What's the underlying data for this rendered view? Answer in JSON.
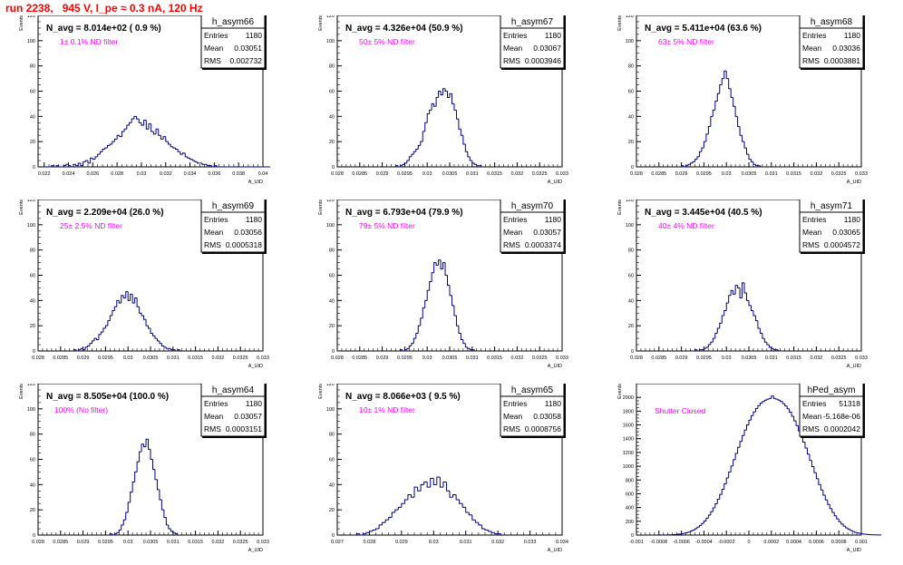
{
  "page_title": "run 2238,   945 V, I_pe ≈ 0.3 nA, 120 Hz",
  "style": {
    "hist_color": "#000080",
    "annotation_color": "#ff00ff",
    "title_color": "#ff0000"
  },
  "chart_data": [
    {
      "type": "histogram",
      "hist_name": "h_asym66",
      "navg": "N_avg = 8.014e+02 ( 0.9 %)",
      "annotation": "1± 0.1% ND filter",
      "stats": {
        "entries": "1180",
        "mean": "0.03051",
        "rms": "0.002732"
      },
      "ylabel": "Events",
      "xlabel": "A_UID",
      "xlim": [
        0.0215,
        0.04
      ],
      "ylim": [
        0,
        120
      ],
      "xticks": [
        0.022,
        0.024,
        0.026,
        0.028,
        0.03,
        0.032,
        0.034,
        0.036,
        0.038,
        0.04
      ],
      "xtick_labels": [
        "0.022",
        "0.024",
        "0.026",
        "0.028",
        "0.03",
        "0.032",
        "0.034",
        "0.036",
        "0.038",
        "0.04"
      ],
      "yticks": [
        0,
        20,
        40,
        60,
        80,
        100,
        120
      ],
      "ytick_labels": [
        "0",
        "20",
        "40",
        "60",
        "80",
        "100",
        "120"
      ],
      "bins": {
        "start": 0.022,
        "width": 0.0002,
        "counts": [
          0,
          0,
          0,
          1,
          0,
          1,
          0,
          0,
          1,
          2,
          1,
          0,
          2,
          1,
          3,
          1,
          4,
          5,
          3,
          7,
          6,
          8,
          10,
          12,
          14,
          15,
          17,
          18,
          20,
          22,
          25,
          24,
          28,
          30,
          33,
          35,
          38,
          40,
          38,
          35,
          33,
          37,
          30,
          34,
          28,
          26,
          30,
          25,
          22,
          24,
          20,
          18,
          16,
          15,
          14,
          12,
          10,
          11,
          8,
          7,
          6,
          5,
          4,
          3,
          3,
          2,
          2,
          1,
          1,
          0,
          1,
          0,
          0,
          0,
          0,
          0,
          0,
          0,
          0,
          0,
          0,
          0,
          0,
          0,
          0,
          0,
          0,
          0,
          0,
          0,
          0,
          0,
          0
        ]
      }
    },
    {
      "type": "histogram",
      "hist_name": "h_asym67",
      "navg": "N_avg = 4.326e+04 (50.9 %)",
      "annotation": "50± 5% ND filter",
      "stats": {
        "entries": "1180",
        "mean": "0.03067",
        "rms": "0.0003946"
      },
      "ylabel": "Events",
      "xlabel": "A_UID",
      "xlim": [
        0.028,
        0.033
      ],
      "ylim": [
        0,
        120
      ],
      "xticks": [
        0.028,
        0.0285,
        0.029,
        0.0295,
        0.03,
        0.0305,
        0.031,
        0.0315,
        0.032,
        0.0325,
        0.033
      ],
      "xtick_labels": [
        "0.028",
        "0.0285",
        "0.029",
        "0.0295",
        "0.03",
        "0.0305",
        "0.031",
        "0.0315",
        "0.032",
        "0.0325",
        "0.033"
      ],
      "yticks": [
        0,
        20,
        40,
        60,
        80,
        100,
        120
      ],
      "ytick_labels": [
        "0",
        "20",
        "40",
        "60",
        "80",
        "100",
        "120"
      ],
      "bins": {
        "start": 0.0293,
        "width": 5e-05,
        "counts": [
          1,
          0,
          1,
          2,
          3,
          5,
          8,
          10,
          12,
          14,
          17,
          20,
          28,
          35,
          42,
          45,
          50,
          48,
          55,
          60,
          57,
          62,
          60,
          55,
          58,
          50,
          45,
          38,
          30,
          25,
          18,
          12,
          8,
          5,
          3,
          2,
          1,
          1
        ]
      }
    },
    {
      "type": "histogram",
      "hist_name": "h_asym68",
      "navg": "N_avg = 5.411e+04 (63.6 %)",
      "annotation": "63± 5% ND filter",
      "stats": {
        "entries": "1180",
        "mean": "0.03036",
        "rms": "0.0003881"
      },
      "ylabel": "Events",
      "xlabel": "A_UID",
      "xlim": [
        0.028,
        0.033
      ],
      "ylim": [
        0,
        120
      ],
      "xticks": [
        0.028,
        0.0285,
        0.029,
        0.0295,
        0.03,
        0.0305,
        0.031,
        0.0315,
        0.032,
        0.0325,
        0.033
      ],
      "xtick_labels": [
        "0.028",
        "0.0285",
        "0.029",
        "0.0295",
        "0.03",
        "0.0305",
        "0.031",
        "0.0315",
        "0.032",
        "0.0325",
        "0.033"
      ],
      "yticks": [
        0,
        20,
        40,
        60,
        80,
        100,
        120
      ],
      "ytick_labels": [
        "0",
        "20",
        "40",
        "60",
        "80",
        "100",
        "120"
      ],
      "bins": {
        "start": 0.029,
        "width": 5e-05,
        "counts": [
          1,
          0,
          1,
          2,
          3,
          4,
          6,
          8,
          12,
          15,
          20,
          26,
          32,
          40,
          45,
          52,
          58,
          65,
          70,
          76,
          70,
          62,
          55,
          48,
          40,
          32,
          25,
          20,
          15,
          10,
          6,
          4,
          2,
          1,
          1
        ]
      }
    },
    {
      "type": "histogram",
      "hist_name": "h_asym69",
      "navg": "N_avg = 2.209e+04 (26.0 %)",
      "annotation": "25± 2.5% ND filter",
      "stats": {
        "entries": "1180",
        "mean": "0.03056",
        "rms": "0.0005318"
      },
      "ylabel": "Events",
      "xlabel": "A_UID",
      "xlim": [
        0.028,
        0.033
      ],
      "ylim": [
        0,
        120
      ],
      "xticks": [
        0.028,
        0.0285,
        0.029,
        0.0295,
        0.03,
        0.0305,
        0.031,
        0.0315,
        0.032,
        0.0325,
        0.033
      ],
      "xtick_labels": [
        "0.028",
        "0.0285",
        "0.029",
        "0.0295",
        "0.03",
        "0.0305",
        "0.031",
        "0.0315",
        "0.032",
        "0.0325",
        "0.033"
      ],
      "yticks": [
        0,
        20,
        40,
        60,
        80,
        100,
        120
      ],
      "ytick_labels": [
        "0",
        "20",
        "40",
        "60",
        "80",
        "100",
        "120"
      ],
      "bins": {
        "start": 0.0288,
        "width": 5e-05,
        "counts": [
          1,
          0,
          1,
          2,
          1,
          3,
          4,
          6,
          8,
          10,
          9,
          13,
          15,
          18,
          20,
          24,
          28,
          32,
          35,
          40,
          38,
          44,
          42,
          47,
          40,
          45,
          38,
          42,
          35,
          30,
          28,
          25,
          20,
          18,
          14,
          12,
          10,
          8,
          6,
          4,
          3,
          2,
          2,
          1,
          1,
          0,
          1
        ]
      }
    },
    {
      "type": "histogram",
      "hist_name": "h_asym70",
      "navg": "N_avg = 6.793e+04 (79.9 %)",
      "annotation": "79± 5% ND filter",
      "stats": {
        "entries": "1180",
        "mean": "0.03057",
        "rms": "0.0003374"
      },
      "ylabel": "Events",
      "xlabel": "A_UID",
      "xlim": [
        0.028,
        0.033
      ],
      "ylim": [
        0,
        120
      ],
      "xticks": [
        0.028,
        0.0285,
        0.029,
        0.0295,
        0.03,
        0.0305,
        0.031,
        0.0315,
        0.032,
        0.0325,
        0.033
      ],
      "xtick_labels": [
        "0.028",
        "0.0285",
        "0.029",
        "0.0295",
        "0.03",
        "0.0305",
        "0.031",
        "0.0315",
        "0.032",
        "0.0325",
        "0.033"
      ],
      "yticks": [
        0,
        20,
        40,
        60,
        80,
        100,
        120
      ],
      "ytick_labels": [
        "0",
        "20",
        "40",
        "60",
        "80",
        "100",
        "120"
      ],
      "bins": {
        "start": 0.0294,
        "width": 5e-05,
        "counts": [
          1,
          0,
          1,
          2,
          4,
          6,
          10,
          14,
          20,
          26,
          34,
          40,
          48,
          55,
          62,
          70,
          68,
          72,
          65,
          70,
          60,
          52,
          44,
          36,
          28,
          20,
          14,
          9,
          6,
          3,
          2,
          1,
          1
        ]
      }
    },
    {
      "type": "histogram",
      "hist_name": "h_asym71",
      "navg": "N_avg = 3.445e+04 (40.5 %)",
      "annotation": "40± 4% ND filter",
      "stats": {
        "entries": "1180",
        "mean": "0.03065",
        "rms": "0.0004572"
      },
      "ylabel": "Events",
      "xlabel": "A_UID",
      "xlim": [
        0.028,
        0.033
      ],
      "ylim": [
        0,
        120
      ],
      "xticks": [
        0.028,
        0.0285,
        0.029,
        0.0295,
        0.03,
        0.0305,
        0.031,
        0.0315,
        0.032,
        0.0325,
        0.033
      ],
      "xtick_labels": [
        "0.028",
        "0.0285",
        "0.029",
        "0.0295",
        "0.03",
        "0.0305",
        "0.031",
        "0.0315",
        "0.032",
        "0.0325",
        "0.033"
      ],
      "yticks": [
        0,
        20,
        40,
        60,
        80,
        100,
        120
      ],
      "ytick_labels": [
        "0",
        "20",
        "40",
        "60",
        "80",
        "100",
        "120"
      ],
      "bins": {
        "start": 0.0293,
        "width": 5e-05,
        "counts": [
          1,
          0,
          1,
          1,
          2,
          3,
          5,
          7,
          10,
          14,
          18,
          22,
          28,
          32,
          38,
          44,
          48,
          45,
          52,
          50,
          42,
          54,
          46,
          40,
          36,
          32,
          28,
          24,
          18,
          14,
          10,
          7,
          5,
          3,
          2,
          1,
          1
        ]
      }
    },
    {
      "type": "histogram",
      "hist_name": "h_asym64",
      "navg": "N_avg = 8.505e+04 (100.0 %)",
      "annotation": "100% (No filter)",
      "stats": {
        "entries": "1180",
        "mean": "0.03057",
        "rms": "0.0003151"
      },
      "ylabel": "Events",
      "xlabel": "A_UID",
      "xlim": [
        0.028,
        0.033
      ],
      "ylim": [
        0,
        120
      ],
      "xticks": [
        0.028,
        0.0285,
        0.029,
        0.0295,
        0.03,
        0.0305,
        0.031,
        0.0315,
        0.032,
        0.0325,
        0.033
      ],
      "xtick_labels": [
        "0.028",
        "0.0285",
        "0.029",
        "0.0295",
        "0.03",
        "0.0305",
        "0.031",
        "0.0315",
        "0.032",
        "0.0325",
        "0.033"
      ],
      "yticks": [
        0,
        20,
        40,
        60,
        80,
        100,
        120
      ],
      "ytick_labels": [
        "0",
        "20",
        "40",
        "60",
        "80",
        "100",
        "120"
      ],
      "bins": {
        "start": 0.0296,
        "width": 5e-05,
        "counts": [
          1,
          0,
          1,
          2,
          4,
          8,
          12,
          18,
          26,
          34,
          42,
          50,
          58,
          66,
          72,
          70,
          76,
          68,
          60,
          52,
          44,
          36,
          28,
          20,
          14,
          8,
          5,
          3,
          2,
          1
        ]
      }
    },
    {
      "type": "histogram",
      "hist_name": "h_asym65",
      "navg": "N_avg = 8.066e+03 ( 9.5 %)",
      "annotation": "10± 1% ND filter",
      "stats": {
        "entries": "1180",
        "mean": "0.03058",
        "rms": "0.0008756"
      },
      "ylabel": "Events",
      "xlabel": "A_UID",
      "xlim": [
        0.027,
        0.034
      ],
      "ylim": [
        0,
        120
      ],
      "xticks": [
        0.027,
        0.028,
        0.029,
        0.03,
        0.031,
        0.032,
        0.033,
        0.034
      ],
      "xtick_labels": [
        "0.027",
        "0.028",
        "0.029",
        "0.03",
        "0.031",
        "0.032",
        "0.033",
        "0.034"
      ],
      "yticks": [
        0,
        20,
        40,
        60,
        80,
        100,
        120
      ],
      "ytick_labels": [
        "0",
        "20",
        "40",
        "60",
        "80",
        "100",
        "120"
      ],
      "bins": {
        "start": 0.0276,
        "width": 0.0001,
        "counts": [
          1,
          0,
          1,
          2,
          3,
          4,
          5,
          8,
          10,
          12,
          14,
          18,
          20,
          22,
          25,
          28,
          32,
          30,
          38,
          35,
          40,
          42,
          38,
          45,
          40,
          46,
          38,
          42,
          35,
          30,
          32,
          28,
          25,
          22,
          18,
          16,
          12,
          10,
          8,
          5,
          4,
          3,
          2,
          1,
          1
        ]
      }
    },
    {
      "type": "histogram",
      "hist_name": "hPed_asym",
      "navg": "",
      "annotation": "Shutter Closed",
      "stats": {
        "entries": "51318",
        "mean": "-5.168e-06",
        "rms": "0.0002042"
      },
      "ylabel": "Events",
      "xlabel": "A_UID",
      "xlim": [
        -0.001,
        0.001
      ],
      "ylim": [
        0,
        2200
      ],
      "xticks": [
        -0.001,
        -0.0008,
        -0.0006,
        -0.0004,
        -0.0002,
        0,
        0.0002,
        0.0004,
        0.0006,
        0.0008,
        0.001
      ],
      "xtick_labels": [
        "-0.001",
        "-0.0008",
        "-0.0006",
        "-0.0004",
        "-0.0002",
        "0",
        "0.0002",
        "0.0004",
        "0.0006",
        "0.0008",
        "0.001"
      ],
      "yticks": [
        0,
        200,
        400,
        600,
        800,
        1000,
        1200,
        1400,
        1600,
        1800,
        2000
      ],
      "ytick_labels": [
        "0",
        "200",
        "400",
        "600",
        "800",
        "1000",
        "1200",
        "1400",
        "1600",
        "1800",
        "2000"
      ],
      "bins": {
        "start": -0.0008,
        "width": 2e-05,
        "counts": [
          1,
          1,
          2,
          2,
          3,
          4,
          6,
          8,
          11,
          15,
          20,
          27,
          35,
          45,
          58,
          74,
          92,
          115,
          140,
          170,
          205,
          245,
          290,
          340,
          395,
          455,
          520,
          590,
          665,
          745,
          830,
          915,
          1005,
          1095,
          1185,
          1275,
          1360,
          1445,
          1525,
          1600,
          1670,
          1735,
          1790,
          1840,
          1880,
          1915,
          1940,
          1960,
          1975,
          1985,
          2020,
          1985,
          1975,
          1960,
          1940,
          1910,
          1875,
          1835,
          1785,
          1725,
          1660,
          1590,
          1515,
          1435,
          1350,
          1265,
          1175,
          1085,
          995,
          905,
          820,
          735,
          655,
          580,
          510,
          445,
          385,
          330,
          280,
          235,
          195,
          160,
          130,
          105,
          85,
          67,
          52,
          40,
          31,
          24,
          18,
          13,
          10,
          7,
          5,
          4,
          3,
          2,
          1,
          1
        ]
      }
    }
  ]
}
